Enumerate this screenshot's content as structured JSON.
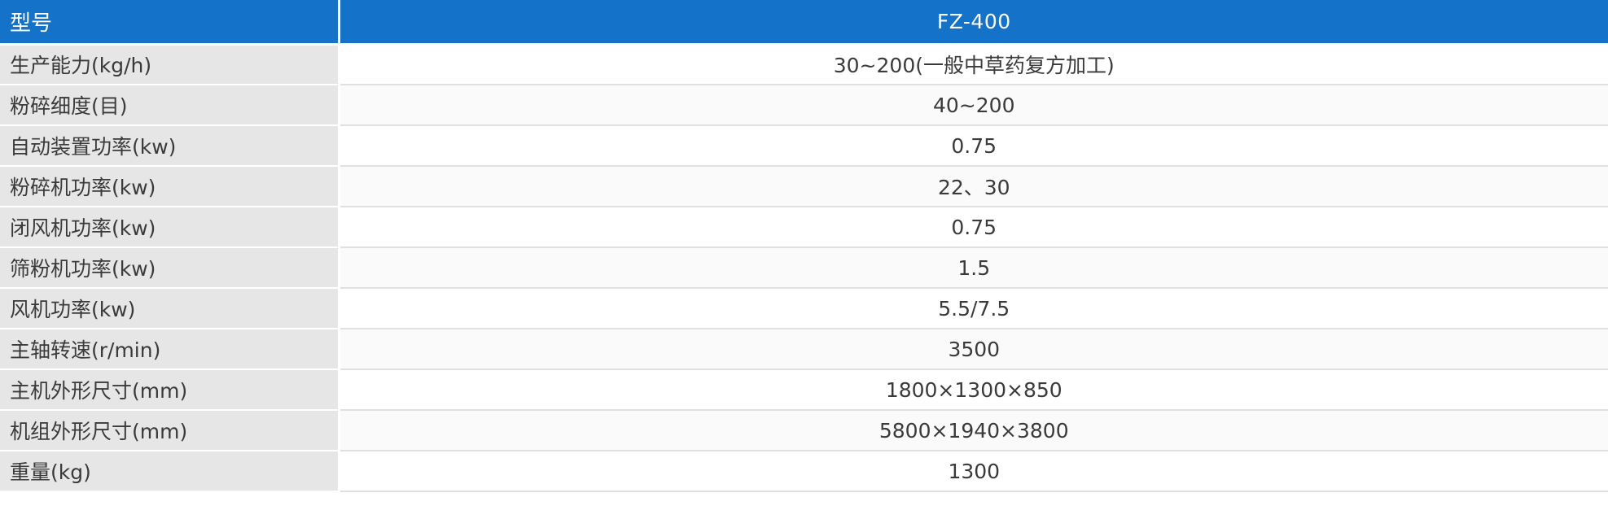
{
  "colors": {
    "header_background": "#1472c8",
    "label_background": "#e6e6e6",
    "text": "#3a3a3a"
  },
  "header": {
    "label": "型号",
    "value": "FZ-400"
  },
  "rows": [
    {
      "label": "生产能力(kg/h)",
      "value": "30~200(一般中草药复方加工)"
    },
    {
      "label": "粉碎细度(目)",
      "value": "40~200"
    },
    {
      "label": "自动装置功率(kw)",
      "value": "0.75"
    },
    {
      "label": "粉碎机功率(kw)",
      "value": "22、30"
    },
    {
      "label": "闭风机功率(kw)",
      "value": "0.75"
    },
    {
      "label": "筛粉机功率(kw)",
      "value": "1.5"
    },
    {
      "label": "风机功率(kw)",
      "value": "5.5/7.5"
    },
    {
      "label": "主轴转速(r/min)",
      "value": "3500"
    },
    {
      "label": "主机外形尺寸(mm)",
      "value": "1800×1300×850"
    },
    {
      "label": "机组外形尺寸(mm)",
      "value": "5800×1940×3800"
    },
    {
      "label": "重量(kg)",
      "value": "1300"
    }
  ]
}
